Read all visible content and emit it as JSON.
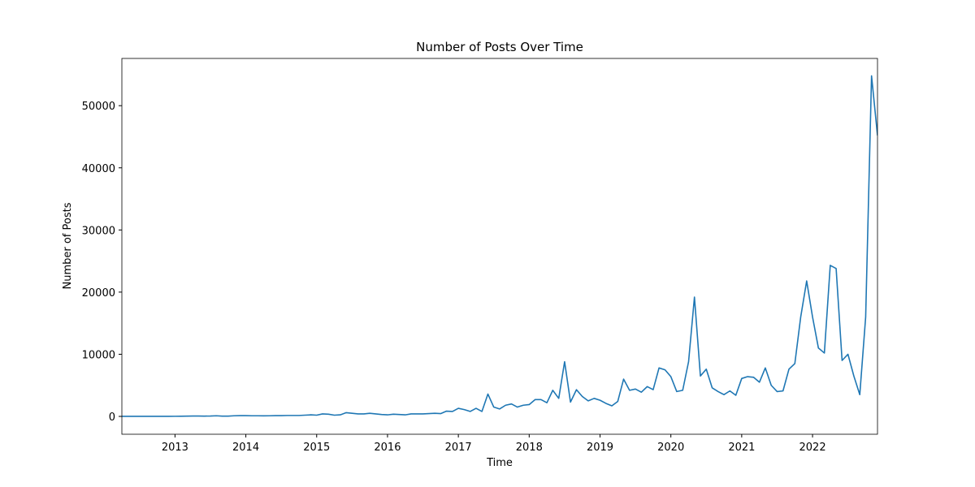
{
  "chart_data": {
    "type": "line",
    "title": "Number of Posts Over Time",
    "x_label": "Time",
    "y_label": "Number of Posts",
    "color": "#1f77b4",
    "x": [
      2012.25,
      2012.333,
      2012.417,
      2012.5,
      2012.583,
      2012.667,
      2012.75,
      2012.833,
      2012.917,
      2013,
      2013.083,
      2013.167,
      2013.25,
      2013.333,
      2013.417,
      2013.5,
      2013.583,
      2013.667,
      2013.75,
      2013.833,
      2013.917,
      2014,
      2014.083,
      2014.167,
      2014.25,
      2014.333,
      2014.417,
      2014.5,
      2014.583,
      2014.667,
      2014.75,
      2014.833,
      2014.917,
      2015,
      2015.083,
      2015.167,
      2015.25,
      2015.333,
      2015.417,
      2015.5,
      2015.583,
      2015.667,
      2015.75,
      2015.833,
      2015.917,
      2016,
      2016.083,
      2016.167,
      2016.25,
      2016.333,
      2016.417,
      2016.5,
      2016.583,
      2016.667,
      2016.75,
      2016.833,
      2016.917,
      2017,
      2017.083,
      2017.167,
      2017.25,
      2017.333,
      2017.417,
      2017.5,
      2017.583,
      2017.667,
      2017.75,
      2017.833,
      2017.917,
      2018,
      2018.083,
      2018.167,
      2018.25,
      2018.333,
      2018.417,
      2018.5,
      2018.583,
      2018.667,
      2018.75,
      2018.833,
      2018.917,
      2019,
      2019.083,
      2019.167,
      2019.25,
      2019.333,
      2019.417,
      2019.5,
      2019.583,
      2019.667,
      2019.75,
      2019.833,
      2019.917,
      2020,
      2020.083,
      2020.167,
      2020.25,
      2020.333,
      2020.417,
      2020.5,
      2020.583,
      2020.667,
      2020.75,
      2020.833,
      2020.917,
      2021,
      2021.083,
      2021.167,
      2021.25,
      2021.333,
      2021.417,
      2021.5,
      2021.583,
      2021.667,
      2021.75,
      2021.833,
      2021.917,
      2022,
      2022.083,
      2022.167,
      2022.25,
      2022.333,
      2022.417,
      2022.5,
      2022.583,
      2022.667,
      2022.75,
      2022.833,
      2022.917
    ],
    "values": [
      10,
      10,
      10,
      10,
      10,
      10,
      10,
      10,
      10,
      20,
      30,
      40,
      60,
      60,
      50,
      60,
      100,
      50,
      50,
      100,
      120,
      120,
      100,
      100,
      90,
      100,
      120,
      130,
      150,
      150,
      150,
      200,
      250,
      200,
      400,
      350,
      200,
      250,
      600,
      500,
      400,
      400,
      500,
      400,
      300,
      250,
      350,
      300,
      250,
      400,
      400,
      400,
      450,
      500,
      450,
      850,
      800,
      1300,
      1100,
      800,
      1300,
      800,
      3600,
      1500,
      1200,
      1800,
      2000,
      1500,
      1800,
      1900,
      2700,
      2700,
      2200,
      4200,
      2900,
      8800,
      2300,
      4300,
      3200,
      2500,
      2900,
      2600,
      2100,
      1700,
      2400,
      6000,
      4200,
      4400,
      3900,
      4800,
      4300,
      7800,
      7500,
      6400,
      4000,
      4200,
      8800,
      19200,
      6500,
      7600,
      4600,
      4000,
      3500,
      4100,
      3400,
      6100,
      6400,
      6300,
      5500,
      7800,
      5000,
      4000,
      4100,
      7600,
      8500,
      16000,
      21800,
      16000,
      11000,
      10200,
      24300,
      23800,
      9000,
      10000,
      6500,
      3500,
      16000,
      54800,
      45200
    ],
    "xlim": [
      2012.25,
      2022.917
    ],
    "xticks": [
      2013,
      2014,
      2015,
      2016,
      2017,
      2018,
      2019,
      2020,
      2021,
      2022
    ],
    "ylim": [
      -2870,
      57600
    ],
    "yticks": [
      0,
      10000,
      20000,
      30000,
      40000,
      50000
    ]
  }
}
